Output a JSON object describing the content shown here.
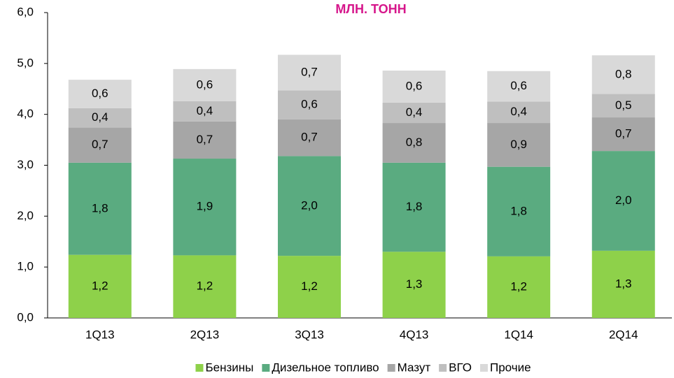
{
  "chart_data": {
    "type": "stacked_bar",
    "title": "МЛН. ТОНН",
    "categories": [
      "1Q13",
      "2Q13",
      "3Q13",
      "4Q13",
      "1Q14",
      "2Q14"
    ],
    "series": [
      {
        "name": "Бензины",
        "color": "#8ed14a",
        "values": [
          1.24,
          1.23,
          1.22,
          1.3,
          1.21,
          1.32
        ],
        "value_labels": [
          "1,2",
          "1,2",
          "1,2",
          "1,3",
          "1,2",
          "1,3"
        ]
      },
      {
        "name": "Дизельное топливо",
        "color": "#5aab80",
        "values": [
          1.81,
          1.9,
          1.96,
          1.75,
          1.76,
          1.96
        ],
        "value_labels": [
          "1,8",
          "1,9",
          "2,0",
          "1,8",
          "1,8",
          "2,0"
        ]
      },
      {
        "name": "Мазут",
        "color": "#a6a6a6",
        "values": [
          0.69,
          0.73,
          0.72,
          0.78,
          0.86,
          0.66
        ],
        "value_labels": [
          "0,7",
          "0,7",
          "0,7",
          "0,8",
          "0,9",
          "0,7"
        ]
      },
      {
        "name": "ВГО",
        "color": "#bfbfbf",
        "values": [
          0.38,
          0.4,
          0.57,
          0.4,
          0.42,
          0.46
        ],
        "value_labels": [
          "0,4",
          "0,4",
          "0,6",
          "0,4",
          "0,4",
          "0,5"
        ]
      },
      {
        "name": "Прочие",
        "color": "#d9d9d9",
        "values": [
          0.56,
          0.63,
          0.7,
          0.63,
          0.6,
          0.76
        ],
        "value_labels": [
          "0,6",
          "0,6",
          "0,7",
          "0,6",
          "0,6",
          "0,8"
        ]
      }
    ],
    "ylim": [
      0,
      6
    ],
    "yticks": [
      {
        "value": 0,
        "label": "0,0"
      },
      {
        "value": 1,
        "label": "1,0"
      },
      {
        "value": 2,
        "label": "2,0"
      },
      {
        "value": 3,
        "label": "3,0"
      },
      {
        "value": 4,
        "label": "4,0"
      },
      {
        "value": 5,
        "label": "5,0"
      },
      {
        "value": 6,
        "label": "6,0"
      }
    ],
    "legend": "bottom"
  }
}
